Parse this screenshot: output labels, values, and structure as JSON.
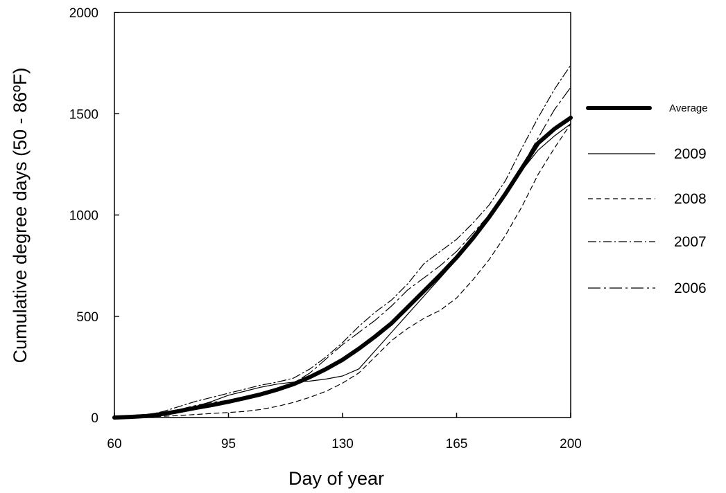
{
  "chart_data": {
    "type": "line",
    "title": "",
    "xlabel": "Day of year",
    "ylabel": "Cumulative degree days (50 - 86ºF)",
    "xlim": [
      60,
      200
    ],
    "ylim": [
      0,
      2000
    ],
    "xticks": [
      60,
      95,
      130,
      165,
      200
    ],
    "yticks": [
      0,
      500,
      1000,
      1500,
      2000
    ],
    "grid": false,
    "legend_position": "right",
    "series": [
      {
        "name": "Average",
        "style": "thick-solid",
        "x": [
          60,
          65,
          70,
          75,
          80,
          85,
          90,
          95,
          100,
          105,
          110,
          115,
          120,
          125,
          130,
          135,
          140,
          145,
          150,
          155,
          160,
          165,
          170,
          175,
          180,
          185,
          190,
          195,
          200
        ],
        "y": [
          0,
          3,
          8,
          18,
          32,
          48,
          62,
          78,
          96,
          115,
          138,
          165,
          200,
          240,
          285,
          340,
          400,
          465,
          545,
          625,
          705,
          790,
          885,
          990,
          1105,
          1230,
          1355,
          1425,
          1480
        ]
      },
      {
        "name": "2009",
        "style": "thin-solid",
        "x": [
          60,
          65,
          70,
          75,
          80,
          85,
          90,
          95,
          100,
          105,
          110,
          115,
          120,
          125,
          130,
          135,
          140,
          145,
          150,
          155,
          160,
          165,
          170,
          175,
          180,
          185,
          190,
          195,
          200
        ],
        "y": [
          0,
          2,
          6,
          15,
          30,
          55,
          80,
          110,
          130,
          150,
          165,
          175,
          180,
          190,
          205,
          240,
          330,
          420,
          510,
          600,
          690,
          780,
          880,
          990,
          1110,
          1220,
          1320,
          1390,
          1450
        ]
      },
      {
        "name": "2008",
        "style": "dashed",
        "x": [
          60,
          65,
          70,
          75,
          80,
          85,
          90,
          95,
          100,
          105,
          110,
          115,
          120,
          125,
          130,
          135,
          140,
          145,
          150,
          155,
          160,
          165,
          170,
          175,
          180,
          185,
          190,
          195,
          200
        ],
        "y": [
          0,
          1,
          3,
          6,
          10,
          15,
          20,
          25,
          30,
          40,
          55,
          75,
          100,
          130,
          170,
          220,
          300,
          380,
          440,
          490,
          530,
          590,
          680,
          780,
          900,
          1040,
          1200,
          1330,
          1450
        ]
      },
      {
        "name": "2007",
        "style": "dash-dot",
        "x": [
          60,
          65,
          70,
          75,
          80,
          85,
          90,
          95,
          100,
          105,
          110,
          115,
          120,
          125,
          130,
          135,
          140,
          145,
          150,
          155,
          160,
          165,
          170,
          175,
          180,
          185,
          190,
          195,
          200
        ],
        "y": [
          0,
          4,
          12,
          30,
          55,
          80,
          100,
          120,
          140,
          160,
          175,
          195,
          240,
          300,
          370,
          450,
          520,
          580,
          660,
          760,
          820,
          880,
          960,
          1050,
          1170,
          1330,
          1480,
          1620,
          1740
        ]
      },
      {
        "name": "2006",
        "style": "long-dash-dot",
        "x": [
          60,
          65,
          70,
          75,
          80,
          85,
          90,
          95,
          100,
          105,
          110,
          115,
          120,
          125,
          130,
          135,
          140,
          145,
          150,
          155,
          160,
          165,
          170,
          175,
          180,
          185,
          190,
          195,
          200
        ],
        "y": [
          0,
          3,
          9,
          20,
          40,
          60,
          75,
          85,
          95,
          110,
          135,
          170,
          220,
          290,
          360,
          420,
          480,
          550,
          630,
          690,
          750,
          820,
          910,
          1000,
          1110,
          1240,
          1380,
          1520,
          1630
        ]
      }
    ]
  }
}
